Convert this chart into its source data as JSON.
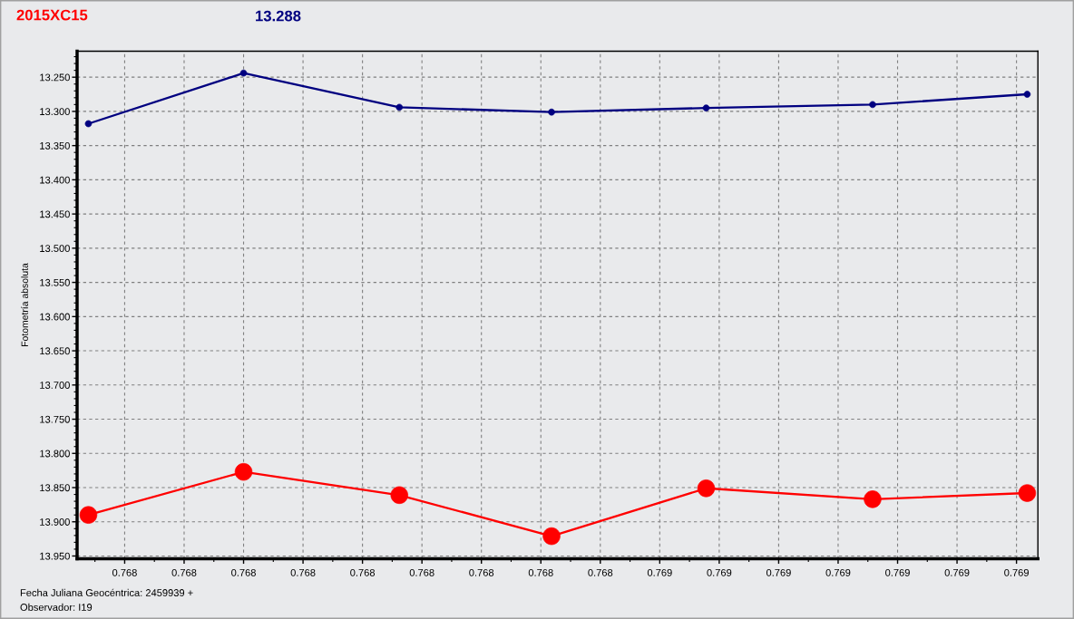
{
  "chart_data": {
    "type": "line",
    "title": "2015XC15",
    "subtitle": "13.288",
    "xlabel": "Fecha Juliana Geocéntrica: 2459939 +",
    "ylabel": "Fotometría absoluta",
    "annotations": [
      "Observador: I19"
    ],
    "x": [
      0.767539,
      0.7678,
      0.768062,
      0.768318,
      0.768578,
      0.768858,
      0.769118
    ],
    "series": [
      {
        "color": "#000080",
        "values": [
          13.318,
          13.244,
          13.294,
          13.301,
          13.295,
          13.29,
          13.275
        ]
      },
      {
        "color": "#ff0000",
        "values": [
          13.89,
          13.827,
          13.861,
          13.921,
          13.851,
          13.867,
          13.858
        ]
      }
    ],
    "xlim": [
      0.76752,
      0.769136
    ],
    "xticks": [
      {
        "value": 0.7676,
        "label": "0.768"
      },
      {
        "value": 0.7677,
        "label": "0.768"
      },
      {
        "value": 0.7678,
        "label": "0.768"
      },
      {
        "value": 0.7679,
        "label": "0.768"
      },
      {
        "value": 0.768,
        "label": "0.768"
      },
      {
        "value": 0.7681,
        "label": "0.768"
      },
      {
        "value": 0.7682,
        "label": "0.768"
      },
      {
        "value": 0.7683,
        "label": "0.768"
      },
      {
        "value": 0.7684,
        "label": "0.768"
      },
      {
        "value": 0.7685,
        "label": "0.769"
      },
      {
        "value": 0.7686,
        "label": "0.769"
      },
      {
        "value": 0.7687,
        "label": "0.769"
      },
      {
        "value": 0.7688,
        "label": "0.769"
      },
      {
        "value": 0.7689,
        "label": "0.769"
      },
      {
        "value": 0.769,
        "label": "0.769"
      },
      {
        "value": 0.7691,
        "label": "0.769"
      }
    ],
    "ylim": [
      13.954,
      13.212
    ],
    "yticks": [
      {
        "value": 13.25,
        "label": "13.250"
      },
      {
        "value": 13.3,
        "label": "13.300"
      },
      {
        "value": 13.35,
        "label": "13.350"
      },
      {
        "value": 13.4,
        "label": "13.400"
      },
      {
        "value": 13.45,
        "label": "13.450"
      },
      {
        "value": 13.5,
        "label": "13.500"
      },
      {
        "value": 13.55,
        "label": "13.550"
      },
      {
        "value": 13.6,
        "label": "13.600"
      },
      {
        "value": 13.65,
        "label": "13.650"
      },
      {
        "value": 13.7,
        "label": "13.700"
      },
      {
        "value": 13.75,
        "label": "13.750"
      },
      {
        "value": 13.8,
        "label": "13.800"
      },
      {
        "value": 13.85,
        "label": "13.850"
      },
      {
        "value": 13.9,
        "label": "13.900"
      },
      {
        "value": 13.95,
        "label": "13.950"
      }
    ],
    "grid": true,
    "marker": "circle",
    "line_style": "solid"
  }
}
